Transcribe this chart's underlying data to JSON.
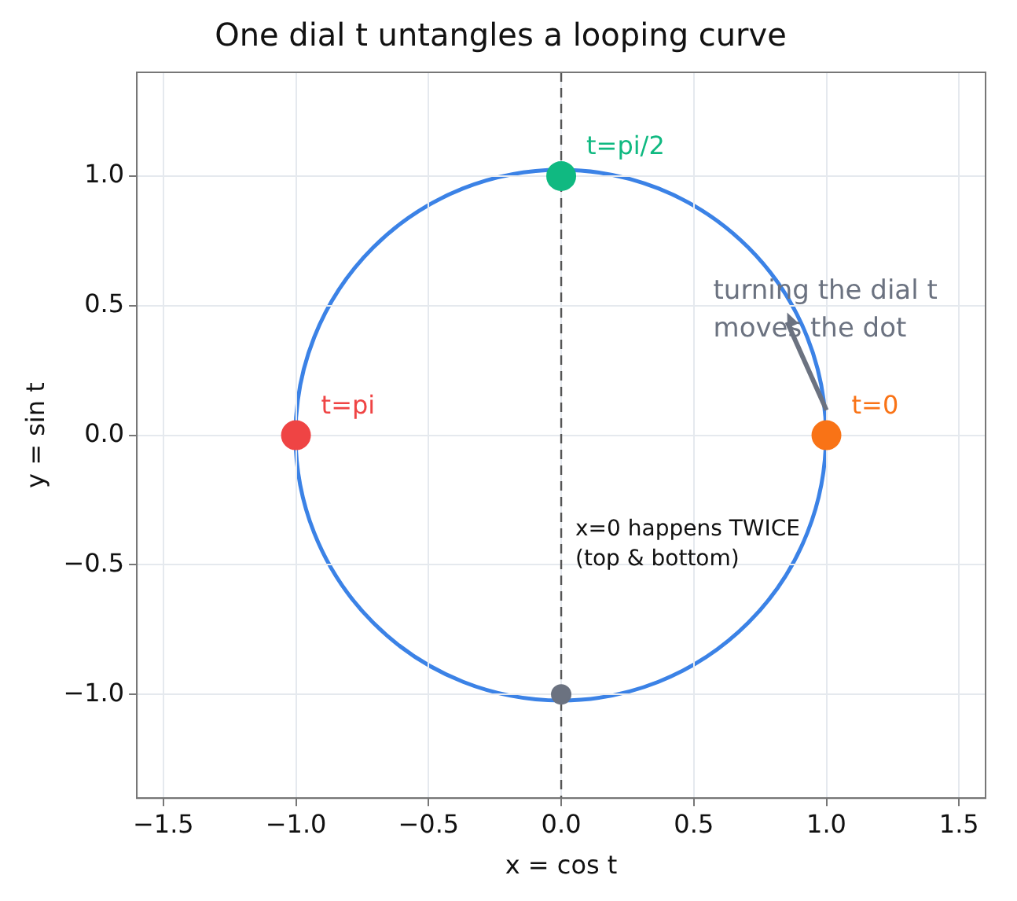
{
  "chart_data": {
    "type": "line",
    "title": "One dial t untangles a looping curve",
    "xlabel": "x = cos t",
    "ylabel": "y = sin t",
    "xlim": [
      -1.6,
      1.6
    ],
    "ylim": [
      -1.4,
      1.4
    ],
    "xticks": [
      {
        "value": -1.5,
        "label": "−1.5"
      },
      {
        "value": -1.0,
        "label": "−1.0"
      },
      {
        "value": -0.5,
        "label": "−0.5"
      },
      {
        "value": 0,
        "label": "0.0"
      },
      {
        "value": 0.5,
        "label": "0.5"
      },
      {
        "value": 1.0,
        "label": "1.0"
      },
      {
        "value": 1.5,
        "label": "1.5"
      }
    ],
    "yticks": [
      {
        "value": -1.0,
        "label": "−1.0"
      },
      {
        "value": -0.5,
        "label": "−0.5"
      },
      {
        "value": 0,
        "label": "0.0"
      },
      {
        "value": 0.5,
        "label": "0.5"
      },
      {
        "value": 1.0,
        "label": "1.0"
      }
    ],
    "grid": true,
    "legend": false,
    "series": [
      {
        "type": "scatter",
        "name": "t=0",
        "color": "#f97316",
        "marker": "circle",
        "x": [
          1
        ],
        "values": [
          0
        ]
      },
      {
        "type": "scatter",
        "name": "t=pi/2",
        "color": "#10b981",
        "marker": "circle",
        "x": [
          0
        ],
        "values": [
          1
        ]
      },
      {
        "type": "scatter",
        "name": "t=pi",
        "color": "#ef4444",
        "marker": "circle",
        "x": [
          -1
        ],
        "values": [
          0
        ]
      },
      {
        "type": "scatter",
        "color": "#6b7280",
        "marker": "circle",
        "x": [
          0
        ],
        "values": [
          -1
        ]
      }
    ],
    "ref_lines": [
      {
        "axis": "x",
        "value": 0,
        "color": "#555555",
        "line_style": "dashed"
      }
    ],
    "annotations": [
      {
        "text": "x=0 happens TWICE\n(top & bottom)",
        "x": 0,
        "y": -0.4
      },
      "turning the dial t\nmoves the dot"
    ]
  }
}
